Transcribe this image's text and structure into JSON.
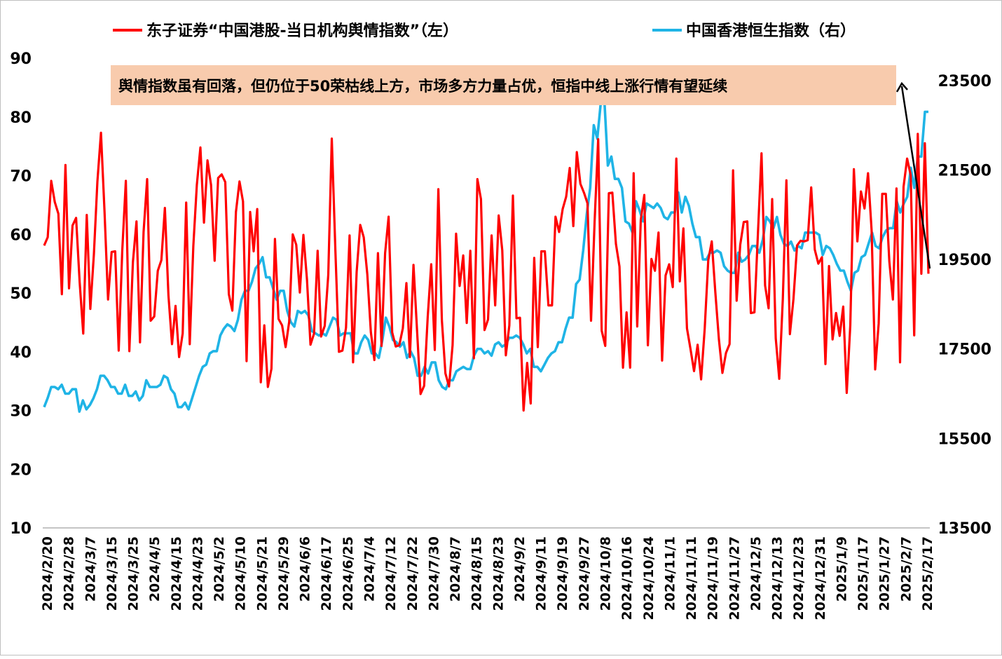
{
  "chart_data": {
    "type": "line",
    "legend": [
      {
        "label": "东子证券“中国港股-当日机构舆情指数”（左）",
        "color": "#ff0000"
      },
      {
        "label": "中国香港恒生指数（右）",
        "color": "#1fb4e6"
      }
    ],
    "legend_position": "top",
    "annotation": "舆情指数虽有回落，但仍位于50荣枯线上方，市场多方力量占优，恒指中线上涨行情有望延续",
    "annotation_fill": "#f8cbad",
    "y_left": {
      "ticks": [
        "90",
        "80",
        "70",
        "60",
        "50",
        "40",
        "30",
        "20",
        "10"
      ],
      "lim": [
        10,
        90
      ]
    },
    "y_right": {
      "ticks": [
        "23500",
        "21500",
        "19500",
        "17500",
        "15500",
        "13500"
      ],
      "lim": [
        13500,
        24500
      ]
    },
    "x_ticks": [
      "2024/2/20",
      "2024/2/28",
      "2024/3/7",
      "2024/3/15",
      "2024/3/25",
      "2024/4/5",
      "2024/4/15",
      "2024/4/23",
      "2024/5/2",
      "2024/5/10",
      "2024/5/21",
      "2024/5/29",
      "2024/6/6",
      "2024/6/17",
      "2024/6/25",
      "2024/7/4",
      "2024/7/12",
      "2024/7/22",
      "2024/7/30",
      "2024/8/7",
      "2024/8/15",
      "2024/8/23",
      "2024/9/2",
      "2024/9/11",
      "2024/9/19",
      "2024/9/27",
      "2024/10/8",
      "2024/10/16",
      "2024/10/24",
      "2024/11/1",
      "2024/11/11",
      "2024/11/19",
      "2024/11/27",
      "2024/12/5",
      "2024/12/13",
      "2024/12/23",
      "2024/12/31",
      "2025/1/9",
      "2025/1/17",
      "2025/1/27",
      "2025/2/7",
      "2025/2/17"
    ],
    "series": [
      {
        "name": "东子证券“中国港股-当日机构舆情指数”（左）",
        "axis": "left",
        "color": "#ff0000",
        "values": [
          58.1,
          59.5,
          69.1,
          65.5,
          63.5,
          49.8,
          71.8,
          50.8,
          61.5,
          62.8,
          51.8,
          43.1,
          63.3,
          47.3,
          56.6,
          69.0,
          77.3,
          63.8,
          48.9,
          57.0,
          57.1,
          40.2,
          57.3,
          69.1,
          40.1,
          55.3,
          62.2,
          41.6,
          60.4,
          69.4,
          45.3,
          46.0,
          53.8,
          55.6,
          64.5,
          49.6,
          41.3,
          47.8,
          39.1,
          43.1,
          65.4,
          41.3,
          58.0,
          68.4,
          74.8,
          62.0,
          72.6,
          68.4,
          55.5,
          69.6,
          70.2,
          68.9,
          49.8,
          47.0,
          63.8,
          69.0,
          65.6,
          38.4,
          63.8,
          57.1,
          64.3,
          34.8,
          44.5,
          34.0,
          37.1,
          59.2,
          45.6,
          44.5,
          40.8,
          45.1,
          60.0,
          58.2,
          50.1,
          59.9,
          52.3,
          41.2,
          43.1,
          57.2,
          42.6,
          44.4,
          53.1,
          76.3,
          57.4,
          40.0,
          40.2,
          44.1,
          59.8,
          38.2,
          53.6,
          61.6,
          59.5,
          53.2,
          43.3,
          38.6,
          56.8,
          41.0,
          56.8,
          63.0,
          43.3,
          40.9,
          41.1,
          44.0,
          51.7,
          39.1,
          54.8,
          43.6,
          32.8,
          34.2,
          45.9,
          54.9,
          40.3,
          67.7,
          45.4,
          36.3,
          34.1,
          41.1,
          60.1,
          51.2,
          56.4,
          44.9,
          57.2,
          38.9,
          69.4,
          66.0,
          43.7,
          45.5,
          59.8,
          47.9,
          63.2,
          57.3,
          39.4,
          44.5,
          66.6,
          45.7,
          45.8,
          30.0,
          38.1,
          31.2,
          56.0,
          40.8,
          57.1,
          57.1,
          47.9,
          47.9,
          63.0,
          60.4,
          64.3,
          66.4,
          71.3,
          61.4,
          74.0,
          68.6,
          67.1,
          65.3,
          45.3,
          62.2,
          76.2,
          43.6,
          41.0,
          67.0,
          67.1,
          58.4,
          54.5,
          37.3,
          46.7,
          37.3,
          70.4,
          44.3,
          62.5,
          66.7,
          41.1,
          55.8,
          53.8,
          60.3,
          38.5,
          53.0,
          54.9,
          51.0,
          72.9,
          52.0,
          61.0,
          44.0,
          40.5,
          36.7,
          41.2,
          35.3,
          43.9,
          55.6,
          58.8,
          50.1,
          42.1,
          36.4,
          39.8,
          41.3,
          70.9,
          48.7,
          58.2,
          62.1,
          62.2,
          46.6,
          46.7,
          60.2,
          73.8,
          51.3,
          47.4,
          66.0,
          42.3,
          35.4,
          49.0,
          69.2,
          43.0,
          49.0,
          58.1,
          58.9,
          58.8,
          59.0,
          68.0,
          57.4,
          55.0,
          56.1,
          37.9,
          54.6,
          42.1,
          46.6,
          42.7,
          47.7,
          33.0,
          44.5,
          71.1,
          58.8,
          67.3,
          64.4,
          70.4,
          60.7,
          37.0,
          44.8,
          66.9,
          66.9,
          55.4,
          48.9,
          67.8,
          38.2,
          68.1,
          72.9,
          70.1,
          42.8,
          77.1,
          53.3,
          75.5,
          53.3
        ]
      },
      {
        "name": "中国香港恒生指数（右）",
        "axis": "right",
        "color": "#1fb4e6",
        "values": [
          16200,
          16400,
          16650,
          16650,
          16600,
          16700,
          16500,
          16500,
          16600,
          16600,
          16100,
          16350,
          16150,
          16250,
          16400,
          16600,
          16900,
          16900,
          16800,
          16650,
          16650,
          16500,
          16500,
          16700,
          16450,
          16450,
          16550,
          16350,
          16450,
          16800,
          16650,
          16650,
          16650,
          16700,
          16900,
          16850,
          16600,
          16500,
          16200,
          16200,
          16300,
          16150,
          16400,
          16650,
          16900,
          17100,
          17150,
          17400,
          17450,
          17450,
          17800,
          17950,
          18050,
          18000,
          17900,
          18150,
          18600,
          18800,
          18800,
          19000,
          19300,
          19400,
          19550,
          19100,
          19100,
          18850,
          18600,
          18800,
          18800,
          18350,
          18100,
          18000,
          18350,
          18300,
          18350,
          18250,
          17900,
          17850,
          17800,
          17850,
          17800,
          18000,
          18200,
          18150,
          17800,
          17850,
          17850,
          17850,
          17400,
          17400,
          17650,
          17800,
          17700,
          17400,
          17400,
          17300,
          17700,
          18200,
          18000,
          17700,
          17650,
          17550,
          17650,
          17300,
          17450,
          17300,
          16900,
          16900,
          17100,
          16950,
          17200,
          17200,
          16800,
          16650,
          16600,
          16800,
          16800,
          17000,
          17050,
          17100,
          17050,
          17050,
          17350,
          17500,
          17500,
          17400,
          17450,
          17350,
          17600,
          17650,
          17550,
          17600,
          17750,
          17750,
          17800,
          17750,
          17600,
          17400,
          17500,
          17100,
          17100,
          17000,
          17150,
          17300,
          17400,
          17450,
          17650,
          17650,
          17950,
          18200,
          18200,
          18950,
          19050,
          19700,
          20500,
          21100,
          22500,
          22200,
          23000,
          23100,
          21600,
          21800,
          21300,
          21300,
          21100,
          20350,
          20300,
          20100,
          20800,
          20600,
          20350,
          20750,
          20700,
          20650,
          20750,
          20650,
          20450,
          20400,
          20550,
          20550,
          21000,
          20550,
          20900,
          20700,
          20300,
          20000,
          20000,
          19500,
          19500,
          19650,
          19650,
          19700,
          19650,
          19350,
          19250,
          19200,
          19200,
          19650,
          19450,
          19500,
          19600,
          19800,
          19800,
          19650,
          19950,
          20450,
          20350,
          20200,
          20450,
          20050,
          19850,
          19800,
          19900,
          19700,
          19800,
          19750,
          20100,
          20100,
          20100,
          20100,
          20050,
          19600,
          19800,
          19750,
          19600,
          19400,
          19250,
          19250,
          19000,
          18800,
          19200,
          19250,
          19550,
          19600,
          19850,
          20100,
          19800,
          19750,
          20000,
          20150,
          20200,
          20200,
          20800,
          20550,
          20750,
          20900,
          21550,
          21100,
          21800,
          21800,
          22800,
          22800
        ]
      }
    ]
  }
}
